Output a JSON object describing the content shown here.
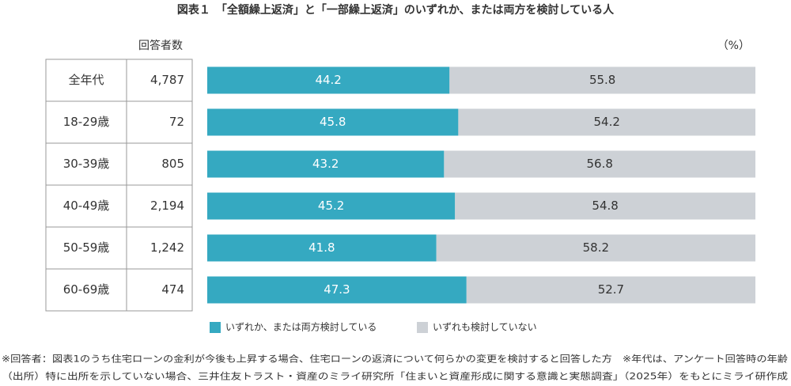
{
  "chart_data": {
    "type": "stacked-bar-horizontal",
    "title": "図表１　「全額繰上返済」と「一部繰上返済」のいずれか、または両方を検討している人",
    "unit_label": "（%）",
    "categories": [
      "全年代",
      "18-29歳",
      "30-39歳",
      "40-49歳",
      "50-59歳",
      "60-69歳"
    ],
    "respondents": {
      "header": "回答者数",
      "values": [
        "4,787",
        "72",
        "805",
        "2,194",
        "1,242",
        "474"
      ]
    },
    "xlim": [
      0,
      100
    ],
    "series": [
      {
        "name": "いずれか、または両方検討している",
        "color": "#35a9c1",
        "label_color": "#ffffff",
        "values": [
          44.2,
          45.8,
          43.2,
          45.2,
          41.8,
          47.3
        ]
      },
      {
        "name": "いずれも検討していない",
        "color": "#cdd1d6",
        "label_color": "#333333",
        "values": [
          55.8,
          54.2,
          56.8,
          54.8,
          58.2,
          52.7
        ]
      }
    ],
    "footnotes": [
      "※回答者：図表1のうち住宅ローンの金利が今後も上昇する場合、住宅ローンの返済について何らかの変更を検討すると回答した方　※年代は、アンケート回答時の年齢",
      "（出所）特に出所を示していない場合、三井住友トラスト・資産のミライ研究所「住まいと資産形成に関する意識と実態調査」（2025年）をもとにミライ研作成"
    ]
  }
}
